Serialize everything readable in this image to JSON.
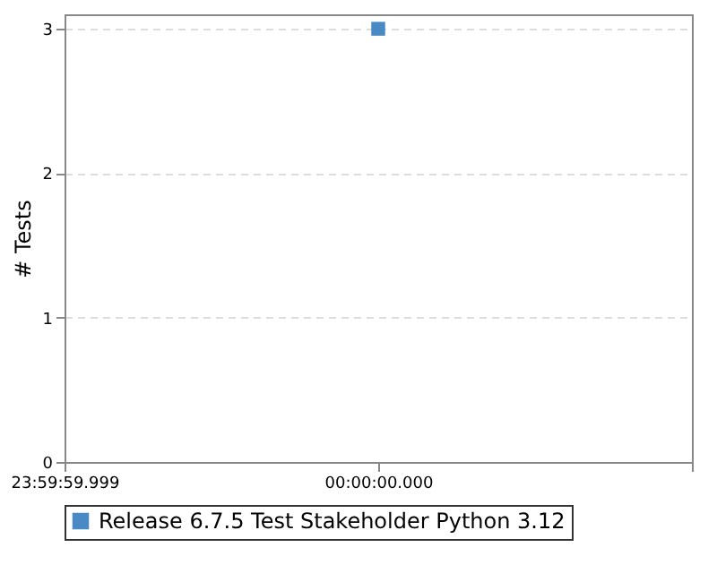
{
  "chart_data": {
    "type": "line",
    "ylabel": "# Tests",
    "categories": [
      "23:59:59.999",
      "00:00:00.000",
      null
    ],
    "series": [
      {
        "name": "Release 6.7.5 Test Stakeholder Python 3.12",
        "color": "#4a8ac4",
        "values": [
          null,
          3,
          null
        ]
      }
    ],
    "ylim": [
      0,
      3.1
    ],
    "yticks": [
      0,
      1,
      2,
      3
    ],
    "grid": "y",
    "legend": "bottom",
    "marker": "square"
  }
}
